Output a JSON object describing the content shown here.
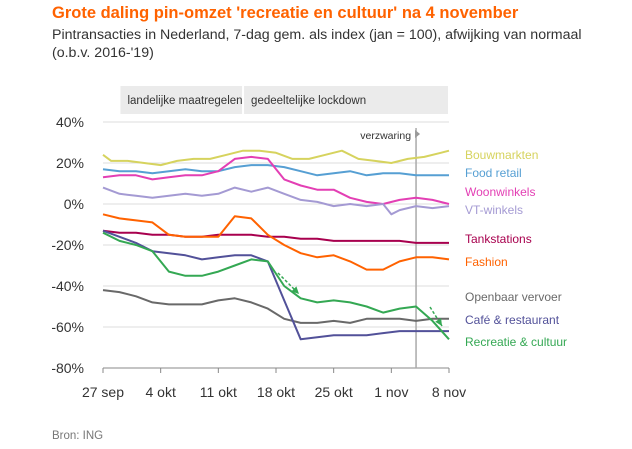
{
  "title": "Grote daling pin-omzet 'recreatie en cultuur' na 4 november",
  "subtitle": "Pintransacties in Nederland, 7-dag gem. als index (jan = 100), afwijking van normaal (o.b.v. 2016-'19)",
  "source": "Bron: ING",
  "colors": {
    "accent": "#ff6200",
    "grid": "#dddddd",
    "band": "#ebebeb"
  },
  "chart_data": {
    "type": "line",
    "ylim": [
      -80,
      40
    ],
    "yticks": [
      -80,
      -60,
      -40,
      -20,
      0,
      20,
      40
    ],
    "ytick_labels": [
      "-80%",
      "-60%",
      "-40%",
      "-20%",
      "0%",
      "20%",
      "40%"
    ],
    "xlim": [
      "2020-09-27",
      "2020-11-08"
    ],
    "xticks": [
      "2020-09-27",
      "2020-10-04",
      "2020-10-11",
      "2020-10-18",
      "2020-10-25",
      "2020-11-01",
      "2020-11-08"
    ],
    "xtick_labels": [
      "27 sep",
      "4 okt",
      "11 okt",
      "18 okt",
      "25 okt",
      "1 nov",
      "8 nov"
    ],
    "grid": true,
    "periods": [
      {
        "label": "landelijke maatregelen",
        "start": "2020-09-29",
        "end": "2020-10-14"
      },
      {
        "label": "gedeeltelijke lockdown",
        "start": "2020-10-14",
        "end": "2020-11-08"
      }
    ],
    "event": {
      "label": "verzwaring",
      "date": "2020-11-04"
    },
    "series": [
      {
        "name": "Bouwmarkten",
        "color": "#d6d35e",
        "dates": [
          "2020-09-27",
          "2020-09-28",
          "2020-09-30",
          "2020-10-02",
          "2020-10-04",
          "2020-10-06",
          "2020-10-08",
          "2020-10-10",
          "2020-10-12",
          "2020-10-14",
          "2020-10-16",
          "2020-10-18",
          "2020-10-20",
          "2020-10-22",
          "2020-10-24",
          "2020-10-26",
          "2020-10-28",
          "2020-10-30",
          "2020-11-01",
          "2020-11-03",
          "2020-11-05",
          "2020-11-07",
          "2020-11-08"
        ],
        "values": [
          24,
          21,
          21,
          20,
          19,
          21,
          22,
          22,
          24,
          26,
          26,
          25,
          22,
          22,
          24,
          26,
          22,
          21,
          20,
          22,
          23,
          25,
          26
        ]
      },
      {
        "name": "Food retail",
        "color": "#569fd3",
        "dates": [
          "2020-09-27",
          "2020-09-29",
          "2020-10-01",
          "2020-10-03",
          "2020-10-05",
          "2020-10-07",
          "2020-10-09",
          "2020-10-11",
          "2020-10-13",
          "2020-10-15",
          "2020-10-17",
          "2020-10-19",
          "2020-10-21",
          "2020-10-23",
          "2020-10-25",
          "2020-10-27",
          "2020-10-29",
          "2020-10-31",
          "2020-11-02",
          "2020-11-04",
          "2020-11-06",
          "2020-11-08"
        ],
        "values": [
          17,
          16,
          16,
          15,
          16,
          17,
          16,
          16,
          18,
          19,
          19,
          18,
          16,
          14,
          15,
          16,
          14,
          15,
          15,
          14,
          14,
          14
        ]
      },
      {
        "name": "Woonwinkels",
        "color": "#e33fb4",
        "dates": [
          "2020-09-27",
          "2020-09-29",
          "2020-10-01",
          "2020-10-03",
          "2020-10-05",
          "2020-10-07",
          "2020-10-09",
          "2020-10-11",
          "2020-10-13",
          "2020-10-15",
          "2020-10-17",
          "2020-10-19",
          "2020-10-21",
          "2020-10-23",
          "2020-10-25",
          "2020-10-27",
          "2020-10-29",
          "2020-10-31",
          "2020-11-02",
          "2020-11-04",
          "2020-11-06",
          "2020-11-08"
        ],
        "values": [
          13,
          14,
          14,
          12,
          13,
          14,
          14,
          16,
          22,
          23,
          22,
          12,
          9,
          7,
          7,
          3,
          1,
          0,
          2,
          3,
          2,
          0
        ]
      },
      {
        "name": "VT-winkels",
        "color": "#a49ad3",
        "dates": [
          "2020-09-27",
          "2020-09-29",
          "2020-10-01",
          "2020-10-03",
          "2020-10-05",
          "2020-10-07",
          "2020-10-09",
          "2020-10-11",
          "2020-10-13",
          "2020-10-15",
          "2020-10-17",
          "2020-10-19",
          "2020-10-21",
          "2020-10-23",
          "2020-10-25",
          "2020-10-27",
          "2020-10-29",
          "2020-10-31",
          "2020-11-01",
          "2020-11-02",
          "2020-11-04",
          "2020-11-06",
          "2020-11-08"
        ],
        "values": [
          8,
          5,
          4,
          3,
          4,
          5,
          4,
          5,
          8,
          6,
          8,
          5,
          2,
          1,
          -1,
          0,
          -1,
          0,
          -5,
          -3,
          -1,
          -2,
          -1
        ]
      },
      {
        "name": "Tankstations",
        "color": "#a8004e",
        "dates": [
          "2020-09-27",
          "2020-09-29",
          "2020-10-01",
          "2020-10-03",
          "2020-10-05",
          "2020-10-07",
          "2020-10-09",
          "2020-10-11",
          "2020-10-13",
          "2020-10-15",
          "2020-10-17",
          "2020-10-19",
          "2020-10-21",
          "2020-10-23",
          "2020-10-25",
          "2020-10-27",
          "2020-10-29",
          "2020-10-31",
          "2020-11-02",
          "2020-11-04",
          "2020-11-06",
          "2020-11-08"
        ],
        "values": [
          -13,
          -14,
          -14,
          -15,
          -15,
          -16,
          -16,
          -15,
          -15,
          -15,
          -16,
          -16,
          -17,
          -17,
          -18,
          -18,
          -18,
          -18,
          -18,
          -19,
          -19,
          -19
        ]
      },
      {
        "name": "Fashion",
        "color": "#ff6200",
        "dates": [
          "2020-09-27",
          "2020-09-29",
          "2020-10-01",
          "2020-10-03",
          "2020-10-05",
          "2020-10-07",
          "2020-10-09",
          "2020-10-11",
          "2020-10-13",
          "2020-10-15",
          "2020-10-17",
          "2020-10-19",
          "2020-10-21",
          "2020-10-23",
          "2020-10-25",
          "2020-10-27",
          "2020-10-29",
          "2020-10-31",
          "2020-11-02",
          "2020-11-04",
          "2020-11-06",
          "2020-11-08"
        ],
        "values": [
          -5,
          -7,
          -8,
          -9,
          -15,
          -16,
          -16,
          -16,
          -6,
          -7,
          -15,
          -20,
          -24,
          -26,
          -25,
          -28,
          -32,
          -32,
          -28,
          -26,
          -26,
          -27
        ]
      },
      {
        "name": "Openbaar vervoer",
        "color": "#696969",
        "dates": [
          "2020-09-27",
          "2020-09-29",
          "2020-10-01",
          "2020-10-03",
          "2020-10-05",
          "2020-10-07",
          "2020-10-09",
          "2020-10-11",
          "2020-10-13",
          "2020-10-15",
          "2020-10-17",
          "2020-10-19",
          "2020-10-21",
          "2020-10-23",
          "2020-10-25",
          "2020-10-27",
          "2020-10-29",
          "2020-10-31",
          "2020-11-02",
          "2020-11-04",
          "2020-11-06",
          "2020-11-08"
        ],
        "values": [
          -42,
          -43,
          -45,
          -48,
          -49,
          -49,
          -49,
          -47,
          -46,
          -48,
          -51,
          -56,
          -58,
          -58,
          -57,
          -58,
          -56,
          -56,
          -56,
          -57,
          -56,
          -56
        ]
      },
      {
        "name": "Café & restaurant",
        "color": "#525199",
        "dates": [
          "2020-09-27",
          "2020-09-29",
          "2020-10-01",
          "2020-10-03",
          "2020-10-05",
          "2020-10-07",
          "2020-10-09",
          "2020-10-11",
          "2020-10-13",
          "2020-10-15",
          "2020-10-17",
          "2020-10-19",
          "2020-10-21",
          "2020-10-23",
          "2020-10-25",
          "2020-10-27",
          "2020-10-29",
          "2020-10-31",
          "2020-11-02",
          "2020-11-04",
          "2020-11-06",
          "2020-11-08"
        ],
        "values": [
          -13,
          -16,
          -19,
          -23,
          -24,
          -25,
          -27,
          -26,
          -25,
          -25,
          -28,
          -47,
          -66,
          -65,
          -64,
          -64,
          -64,
          -63,
          -62,
          -62,
          -62,
          -62
        ]
      },
      {
        "name": "Recreatie & cultuur",
        "color": "#34a853",
        "dates": [
          "2020-09-27",
          "2020-09-29",
          "2020-10-01",
          "2020-10-03",
          "2020-10-05",
          "2020-10-07",
          "2020-10-09",
          "2020-10-11",
          "2020-10-13",
          "2020-10-15",
          "2020-10-17",
          "2020-10-19",
          "2020-10-21",
          "2020-10-23",
          "2020-10-25",
          "2020-10-27",
          "2020-10-29",
          "2020-10-31",
          "2020-11-02",
          "2020-11-04",
          "2020-11-06",
          "2020-11-08"
        ],
        "values": [
          -14,
          -18,
          -20,
          -23,
          -33,
          -35,
          -35,
          -33,
          -30,
          -27,
          -28,
          -40,
          -46,
          -48,
          -47,
          -48,
          -50,
          -53,
          -51,
          -50,
          -57,
          -66
        ]
      }
    ]
  }
}
